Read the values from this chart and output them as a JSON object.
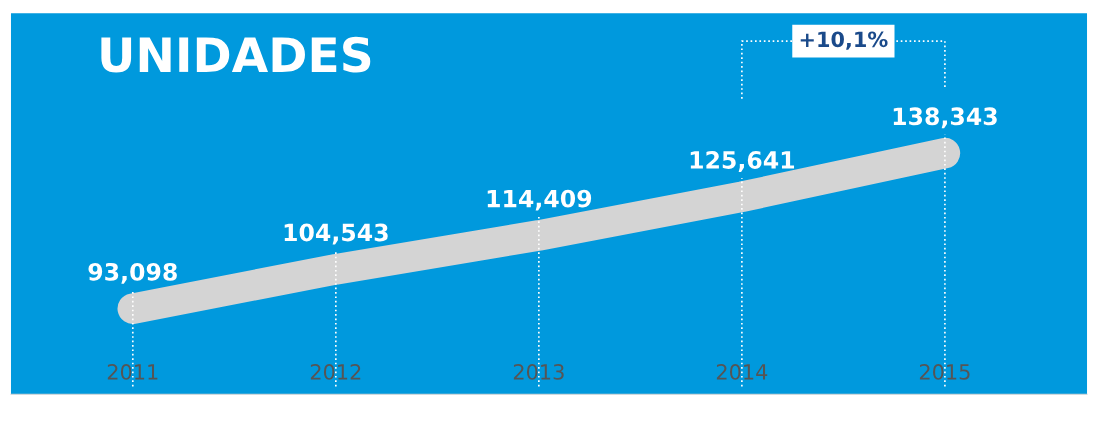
{
  "chart_data": {
    "type": "line",
    "title": "UNIDADES",
    "categories": [
      "2011",
      "2012",
      "2013",
      "2014",
      "2015"
    ],
    "series": [
      {
        "color": "#d4d4d4",
        "values": [
          93098,
          104543,
          114409,
          125641,
          138343
        ],
        "value_labels": [
          "93,098",
          "104,543",
          "114,409",
          "125,641",
          "138,343"
        ]
      }
    ],
    "grid": "x",
    "legend": false,
    "line_style": "solid",
    "annotations": [
      "+10,1%"
    ]
  }
}
